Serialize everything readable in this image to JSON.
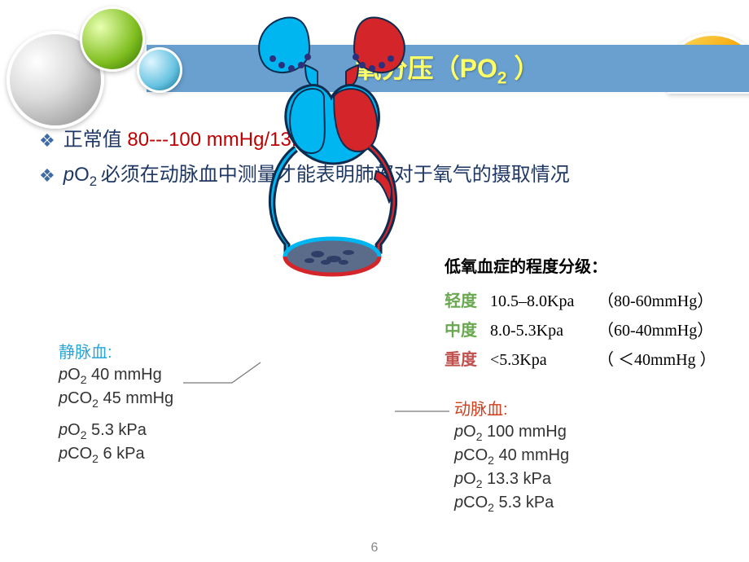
{
  "title_html": "氧分压（PO<sub>2</sub> ）",
  "bullets": [
    {
      "prefix": "正常值 ",
      "highlight": "80---100 mmHg/13.3 kPa"
    },
    {
      "html": "<span class='it'>p</span>O<sub>2 </sub>必须在动脉血中测量才能表明肺部对于氧气的摄取情况"
    }
  ],
  "venous": {
    "header": "静脉血:",
    "lines": [
      "<span class='it'>p</span>O<sub>2</sub> 40 mmHg",
      "<span class='it'>p</span>CO<sub>2</sub> 45 mmHg",
      "<span class='it'>p</span>O<sub>2</sub> 5.3 kPa",
      "<span class='it'>p</span>CO<sub>2</sub> 6 kPa"
    ]
  },
  "arterial": {
    "header": "动脉血:",
    "lines": [
      "<span class='it'>p</span>O<sub>2</sub> 100 mmHg",
      "<span class='it'>p</span>CO<sub>2</sub> 40 mmHg",
      "<span class='it'>p</span>O<sub>2</sub> 13.3 kPa",
      "<span class='it'>p</span>CO<sub>2</sub> 5.3 kPa"
    ]
  },
  "grading": {
    "title": "低氧血症的程度分级：",
    "rows": [
      {
        "cls": "mild",
        "level": "轻度",
        "kpa": "10.5–8.0Kpa",
        "mmhg": "（80-60mmHg）"
      },
      {
        "cls": "mod",
        "level": "中度",
        "kpa": "8.0-5.3Kpa",
        "mmhg": "（60-40mmHg）"
      },
      {
        "cls": "sev",
        "level": "重度",
        "kpa": "<5.3Kpa",
        "mmhg": "（ ＜40mmHg ）"
      }
    ]
  },
  "page_number": "6",
  "colors": {
    "venous_fill": "#00b6f0",
    "arterial_fill": "#d4252a",
    "outline": "#0d2c50",
    "capillary": "#2c2f7a"
  }
}
